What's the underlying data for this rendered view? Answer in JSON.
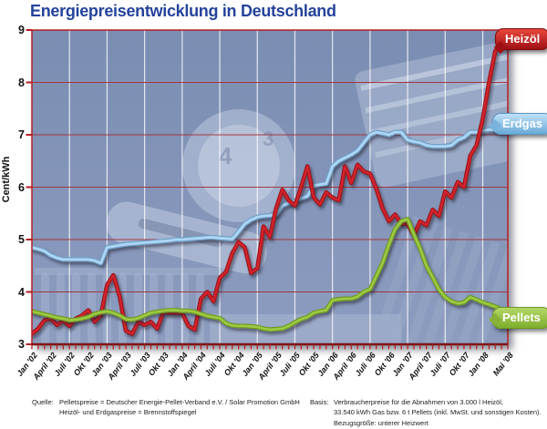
{
  "title": "Energiepreisentwicklung in Deutschland",
  "tags": {
    "heizoel": "Heizöl",
    "erdgas": "Erdgas",
    "pellets": "Pellets"
  },
  "footer": {
    "quelle_label": "Quelle:",
    "quelle_line1": "Pelletspreise = Deutscher Energie-Pellet-Verband e.V. / Solar Promotion GmbH",
    "quelle_line2": "Heizöl- und Erdgaspreise = Brennstoffspiegel",
    "basis_label": "Basis:",
    "basis_line1": "Verbraucherpreise für die Abnahmen von 3.000 l Heizöl,",
    "basis_line2": "33.540 kWh Gas bzw. 6 t Pellets (inkl. MwSt. und sonstigen Kosten).",
    "basis_line3": "Bezugsgröße: unterer Heizwert"
  },
  "colors": {
    "title_blue": "#24439b",
    "plot_background": "#7f91b6",
    "grid_horizontal": "#a62b33",
    "grid_vertical": "#ffffff",
    "frame_red": "#b52025",
    "heizoel_red": "#d2232e",
    "erdgas_blue": "#aed7f4",
    "pellets_green": "#9dc944"
  },
  "chart_data": {
    "type": "line",
    "title": "Energiepreisentwicklung in Deutschland",
    "xlabel": "",
    "ylabel": "Cent/kWh",
    "ylim": [
      3,
      9
    ],
    "y_ticks": [
      3,
      4,
      5,
      6,
      7,
      8,
      9
    ],
    "x_unit": "months since Jan 2002 (0 = Jan '02, 76 = Mai '08)",
    "grid": {
      "horizontal": "on",
      "vertical_every_months": 6
    },
    "legend_position": "right-edge tags",
    "tick_positions": [
      0,
      3,
      6,
      9,
      12,
      15,
      18,
      21,
      24,
      27,
      30,
      33,
      36,
      39,
      42,
      45,
      48,
      51,
      54,
      57,
      60,
      63,
      66,
      69,
      72,
      76
    ],
    "tick_labels": [
      "Jan '02",
      "April '02",
      "Juli '02",
      "Okt '02",
      "Jan '03",
      "April '03",
      "Juli '03",
      "Okt '03",
      "Jan '04",
      "April '04",
      "Juli '04",
      "Okt '04",
      "Jan '05",
      "April '05",
      "Juli '05",
      "Okt '05",
      "Jan '06",
      "April '06",
      "Juli '06",
      "Okt '06",
      "Jan '07",
      "April '07",
      "Juli '07",
      "Okt '07",
      "Jan '08",
      "Mai '08"
    ],
    "series": [
      {
        "name": "Erdgas",
        "color": "#aed7f4",
        "values": [
          4.85,
          4.82,
          4.78,
          4.7,
          4.65,
          4.62,
          4.62,
          4.62,
          4.62,
          4.62,
          4.6,
          4.55,
          4.85,
          4.87,
          4.89,
          4.91,
          4.92,
          4.93,
          4.94,
          4.95,
          4.96,
          4.97,
          4.98,
          5.0,
          5.0,
          5.01,
          5.02,
          5.03,
          5.04,
          5.04,
          5.03,
          5.02,
          5.01,
          5.15,
          5.3,
          5.38,
          5.43,
          5.45,
          5.46,
          5.48,
          5.65,
          5.7,
          5.74,
          5.79,
          5.83,
          6.03,
          6.05,
          6.07,
          6.4,
          6.5,
          6.56,
          6.62,
          6.7,
          6.85,
          7.0,
          7.05,
          7.03,
          7.0,
          7.05,
          7.05,
          6.9,
          6.87,
          6.85,
          6.8,
          6.78,
          6.78,
          6.78,
          6.8,
          6.9,
          6.95,
          7.05,
          7.05,
          7.08,
          7.1,
          7.1,
          7.12,
          7.15
        ]
      },
      {
        "name": "Heizöl",
        "color": "#d2232e",
        "values": [
          3.2,
          3.3,
          3.46,
          3.49,
          3.37,
          3.45,
          3.35,
          3.49,
          3.55,
          3.65,
          3.43,
          3.55,
          4.13,
          4.32,
          3.92,
          3.26,
          3.2,
          3.43,
          3.37,
          3.43,
          3.3,
          3.62,
          3.6,
          3.6,
          3.6,
          3.35,
          3.28,
          3.87,
          4.0,
          3.82,
          4.27,
          4.38,
          4.74,
          4.95,
          4.85,
          4.36,
          4.45,
          5.25,
          5.05,
          5.6,
          5.95,
          5.75,
          5.65,
          6.0,
          6.4,
          5.8,
          5.67,
          5.9,
          5.8,
          5.75,
          6.4,
          6.08,
          6.43,
          6.3,
          6.26,
          5.97,
          5.6,
          5.35,
          5.48,
          5.3,
          5.3,
          5.08,
          5.35,
          5.27,
          5.57,
          5.45,
          5.92,
          5.8,
          6.1,
          6.0,
          6.6,
          6.8,
          7.3,
          8.0,
          8.6,
          8.75,
          8.8
        ]
      },
      {
        "name": "Pellets",
        "color": "#9dc944",
        "values": [
          3.63,
          3.6,
          3.57,
          3.54,
          3.51,
          3.49,
          3.46,
          3.47,
          3.49,
          3.52,
          3.58,
          3.61,
          3.63,
          3.6,
          3.55,
          3.48,
          3.47,
          3.5,
          3.55,
          3.6,
          3.62,
          3.64,
          3.65,
          3.65,
          3.64,
          3.64,
          3.62,
          3.58,
          3.54,
          3.52,
          3.5,
          3.4,
          3.36,
          3.35,
          3.35,
          3.34,
          3.33,
          3.3,
          3.28,
          3.29,
          3.3,
          3.35,
          3.42,
          3.48,
          3.52,
          3.6,
          3.63,
          3.65,
          3.84,
          3.86,
          3.87,
          3.87,
          3.91,
          4.0,
          4.05,
          4.3,
          4.55,
          4.9,
          5.2,
          5.35,
          5.39,
          5.1,
          4.83,
          4.5,
          4.28,
          4.05,
          3.9,
          3.82,
          3.78,
          3.8,
          3.9,
          3.85,
          3.8,
          3.76,
          3.72,
          3.66,
          3.6
        ]
      }
    ]
  }
}
